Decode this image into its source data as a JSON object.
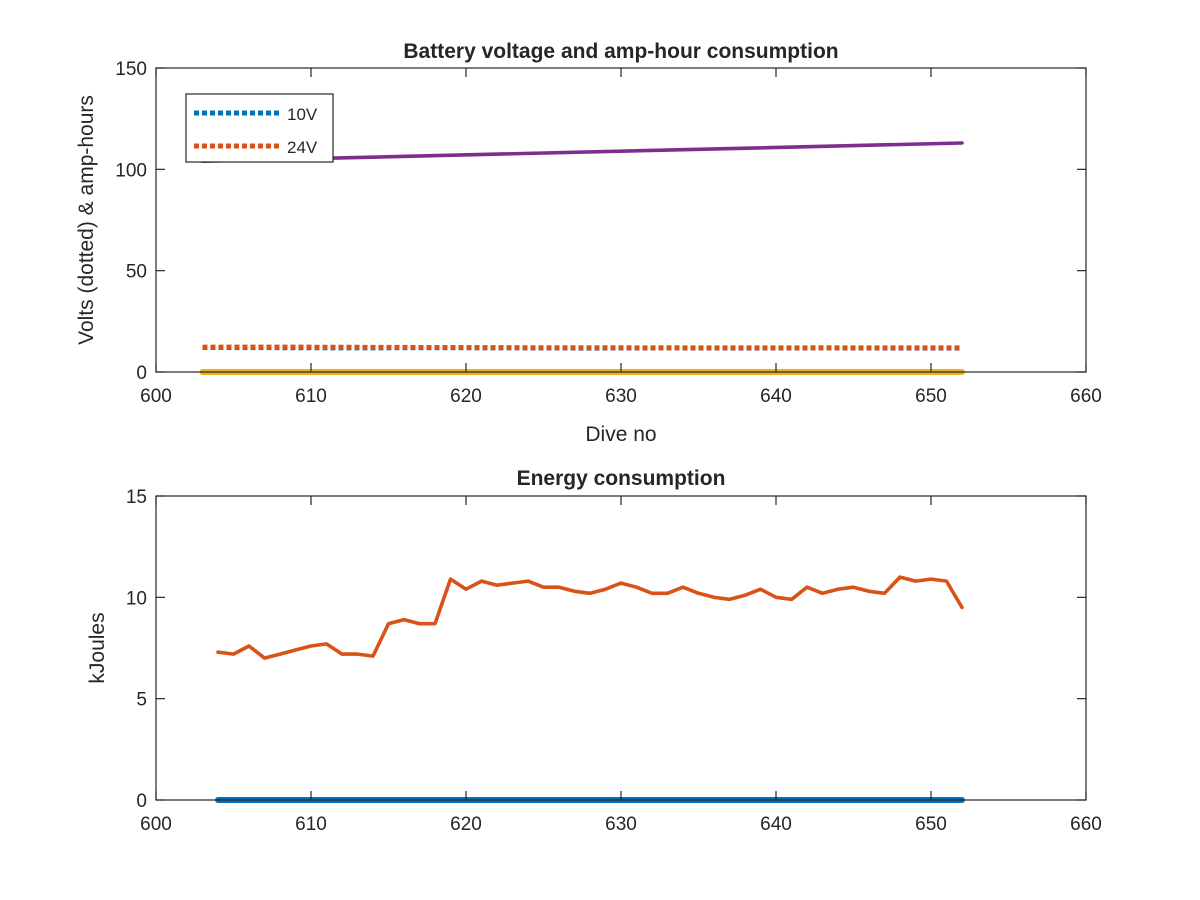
{
  "chart_data": [
    {
      "type": "line",
      "title": "Battery voltage and amp-hour consumption",
      "xlabel": "Dive no",
      "ylabel": "Volts (dotted) & amp-hours",
      "xlim": [
        600,
        660
      ],
      "ylim": [
        0,
        150
      ],
      "xticks": [
        "600",
        "610",
        "620",
        "630",
        "640",
        "650",
        "660"
      ],
      "yticks": [
        "0",
        "50",
        "100",
        "150"
      ],
      "legend": {
        "placement": "top-left",
        "entries": [
          "10V",
          "24V"
        ]
      },
      "series": [
        {
          "name": "10V",
          "style": "dotted",
          "color": "#0072BD",
          "x": [
            603,
            608,
            613,
            618,
            623,
            628,
            633,
            638,
            643,
            648,
            652
          ],
          "y": [
            12.1,
            12.0,
            11.9,
            12.0,
            11.9,
            11.8,
            11.9,
            11.8,
            11.9,
            11.8,
            11.8
          ]
        },
        {
          "name": "24V",
          "style": "dotted",
          "color": "#D95319",
          "x": [
            603,
            608,
            613,
            618,
            623,
            628,
            633,
            638,
            643,
            648,
            652
          ],
          "y": [
            12.3,
            12.3,
            12.2,
            12.1,
            12.0,
            12.0,
            11.9,
            11.9,
            11.9,
            11.9,
            11.9
          ]
        },
        {
          "style": "solid",
          "color": "#7E2F8E",
          "x": [
            603,
            652
          ],
          "y": [
            104,
            113
          ]
        },
        {
          "style": "solid",
          "color": "#EDB120",
          "x": [
            603,
            652
          ],
          "y": [
            0,
            0
          ]
        }
      ]
    },
    {
      "type": "line",
      "title": "Energy consumption",
      "xlabel": "",
      "ylabel": "kJoules",
      "xlim": [
        600,
        660
      ],
      "ylim": [
        0,
        15
      ],
      "xticks": [
        "600",
        "610",
        "620",
        "630",
        "640",
        "650",
        "660"
      ],
      "yticks": [
        "0",
        "5",
        "10",
        "15"
      ],
      "series": [
        {
          "style": "solid",
          "color": "#D95319",
          "x": [
            604,
            605,
            606,
            607,
            608,
            609,
            610,
            611,
            612,
            613,
            614,
            615,
            616,
            617,
            618,
            619,
            620,
            621,
            622,
            623,
            624,
            625,
            626,
            627,
            628,
            629,
            630,
            631,
            632,
            633,
            634,
            635,
            636,
            637,
            638,
            639,
            640,
            641,
            642,
            643,
            644,
            645,
            646,
            647,
            648,
            649,
            650,
            651,
            652
          ],
          "y": [
            7.3,
            7.2,
            7.6,
            7.0,
            7.2,
            7.4,
            7.6,
            7.7,
            7.2,
            7.2,
            7.1,
            8.7,
            8.9,
            8.7,
            8.7,
            10.9,
            10.4,
            10.8,
            10.6,
            10.7,
            10.8,
            10.5,
            10.5,
            10.3,
            10.2,
            10.4,
            10.7,
            10.5,
            10.2,
            10.2,
            10.5,
            10.2,
            10.0,
            9.9,
            10.1,
            10.4,
            10.0,
            9.9,
            10.5,
            10.2,
            10.4,
            10.5,
            10.3,
            10.2,
            11.0,
            10.8,
            10.9,
            10.8,
            9.5
          ]
        },
        {
          "style": "solid",
          "color": "#0072BD",
          "x": [
            604,
            652
          ],
          "y": [
            0,
            0
          ]
        }
      ]
    }
  ]
}
